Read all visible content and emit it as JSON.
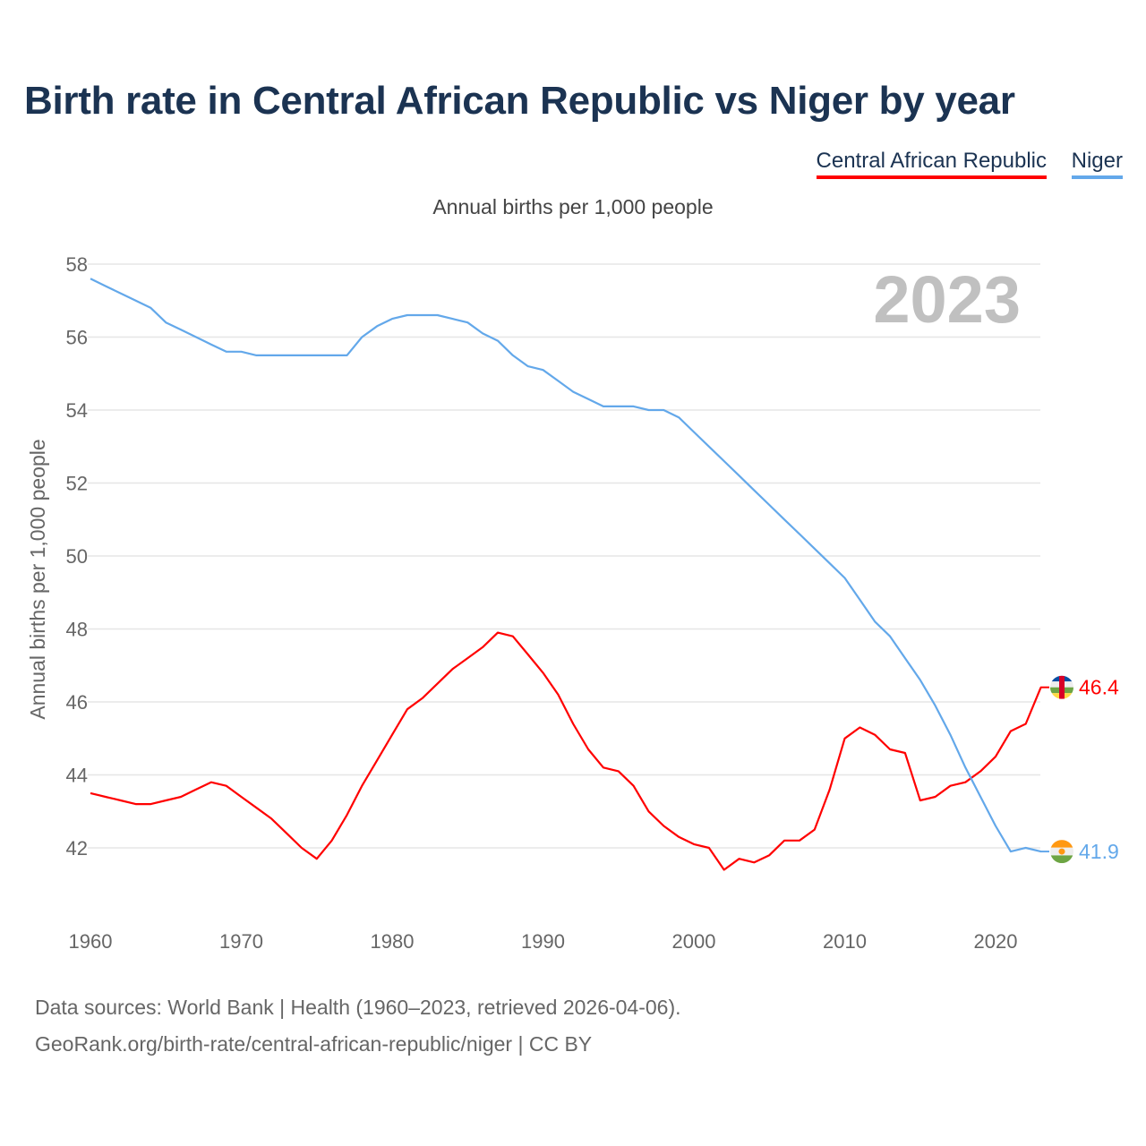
{
  "title": "Birth rate in Central African Republic vs Niger by year",
  "legend": [
    {
      "label": "Central African Republic",
      "color": "#ff0000"
    },
    {
      "label": "Niger",
      "color": "#63a8ea"
    }
  ],
  "subtitle": "Annual births per 1,000 people",
  "footer": {
    "line1": "Data sources: World Bank | Health (1960–2023, retrieved 2026-04-06).",
    "line2": "GeoRank.org/birth-rate/central-african-republic/niger | CC BY"
  },
  "chart_data": {
    "type": "line",
    "title": "Birth rate in Central African Republic vs Niger by year",
    "ylabel": "Annual births per 1,000 people",
    "xlabel": "",
    "year_label": "2023",
    "xlim": [
      1960,
      2023
    ],
    "ylim": [
      40,
      58
    ],
    "yticks": [
      42,
      44,
      46,
      48,
      50,
      52,
      54,
      56,
      58
    ],
    "xticks": [
      1960,
      1970,
      1980,
      1990,
      2000,
      2010,
      2020
    ],
    "grid": true,
    "legend_position": "top-right",
    "x": [
      1960,
      1961,
      1962,
      1963,
      1964,
      1965,
      1966,
      1967,
      1968,
      1969,
      1970,
      1971,
      1972,
      1973,
      1974,
      1975,
      1976,
      1977,
      1978,
      1979,
      1980,
      1981,
      1982,
      1983,
      1984,
      1985,
      1986,
      1987,
      1988,
      1989,
      1990,
      1991,
      1992,
      1993,
      1994,
      1995,
      1996,
      1997,
      1998,
      1999,
      2000,
      2001,
      2002,
      2003,
      2004,
      2005,
      2006,
      2007,
      2008,
      2009,
      2010,
      2011,
      2012,
      2013,
      2014,
      2015,
      2016,
      2017,
      2018,
      2019,
      2020,
      2021,
      2022,
      2023
    ],
    "series": [
      {
        "name": "Central African Republic",
        "color": "#ff0000",
        "end_label": "46.4",
        "values": [
          43.5,
          43.4,
          43.3,
          43.2,
          43.2,
          43.3,
          43.4,
          43.6,
          43.8,
          43.7,
          43.4,
          43.1,
          42.8,
          42.4,
          42.0,
          41.7,
          42.2,
          42.9,
          43.7,
          44.4,
          45.1,
          45.8,
          46.1,
          46.5,
          46.9,
          47.2,
          47.5,
          47.9,
          47.8,
          47.3,
          46.8,
          46.2,
          45.4,
          44.7,
          44.2,
          44.1,
          43.7,
          43.0,
          42.6,
          42.3,
          42.1,
          42.0,
          41.4,
          41.7,
          41.6,
          41.8,
          42.2,
          42.2,
          42.5,
          43.6,
          45.0,
          45.3,
          45.1,
          44.7,
          44.6,
          43.3,
          43.4,
          43.7,
          43.8,
          44.1,
          44.5,
          45.2,
          45.4,
          46.4
        ]
      },
      {
        "name": "Niger",
        "color": "#63a8ea",
        "end_label": "41.9",
        "values": [
          57.6,
          57.4,
          57.2,
          57.0,
          56.8,
          56.4,
          56.2,
          56.0,
          55.8,
          55.6,
          55.6,
          55.5,
          55.5,
          55.5,
          55.5,
          55.5,
          55.5,
          55.5,
          56.0,
          56.3,
          56.5,
          56.6,
          56.6,
          56.6,
          56.5,
          56.4,
          56.1,
          55.9,
          55.5,
          55.2,
          55.1,
          54.8,
          54.5,
          54.3,
          54.1,
          54.1,
          54.1,
          54.0,
          54.0,
          53.8,
          53.4,
          53.0,
          52.6,
          52.2,
          51.8,
          51.4,
          51.0,
          50.6,
          50.2,
          49.8,
          49.4,
          48.8,
          48.2,
          47.8,
          47.2,
          46.6,
          45.9,
          45.1,
          44.2,
          43.4,
          42.6,
          41.9,
          42.0,
          41.9
        ]
      }
    ]
  }
}
